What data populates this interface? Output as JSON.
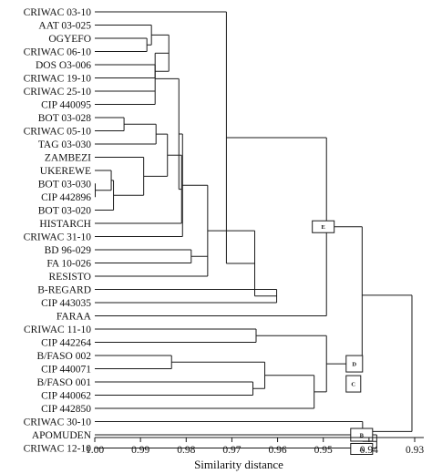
{
  "chart_data": {
    "type": "dendrogram",
    "xlabel": "Similarity distance",
    "xlim": [
      1.0,
      0.93
    ],
    "x_ticks": [
      "1.00",
      "0.99",
      "0.98",
      "0.97",
      "0.96",
      "0.95",
      "0.94",
      "0.93"
    ],
    "leaves": [
      "CRIWAC 03-10",
      "AAT 03-025",
      "OGYEFO",
      "CRIWAC 06-10",
      "DOS O3-006",
      "CRIWAC 19-10",
      "CRIWAC 25-10",
      "CIP 440095",
      "BOT 03-028",
      "CRIWAC 05-10",
      "TAG 03-030",
      "ZAMBEZI",
      "UKEREWE",
      "BOT 03-030",
      "CIP 442896",
      "BOT 03-020",
      "HISTARCH",
      "CRIWAC 31-10",
      "BD 96-029",
      "FA 10-026",
      "RESISTO",
      "B-REGARD",
      "CIP 443035",
      "FARAA",
      "CRIWAC 11-10",
      "CIP 442264",
      "B/FASO 002",
      "CIP 440071",
      "B/FASO 001",
      "CIP 440062",
      "CIP 442850",
      "CRIWAC 30-10",
      "APOMUDEN",
      "CRIWAC 12-10"
    ],
    "clusters": [
      "E",
      "D",
      "C",
      "B",
      "A"
    ]
  }
}
